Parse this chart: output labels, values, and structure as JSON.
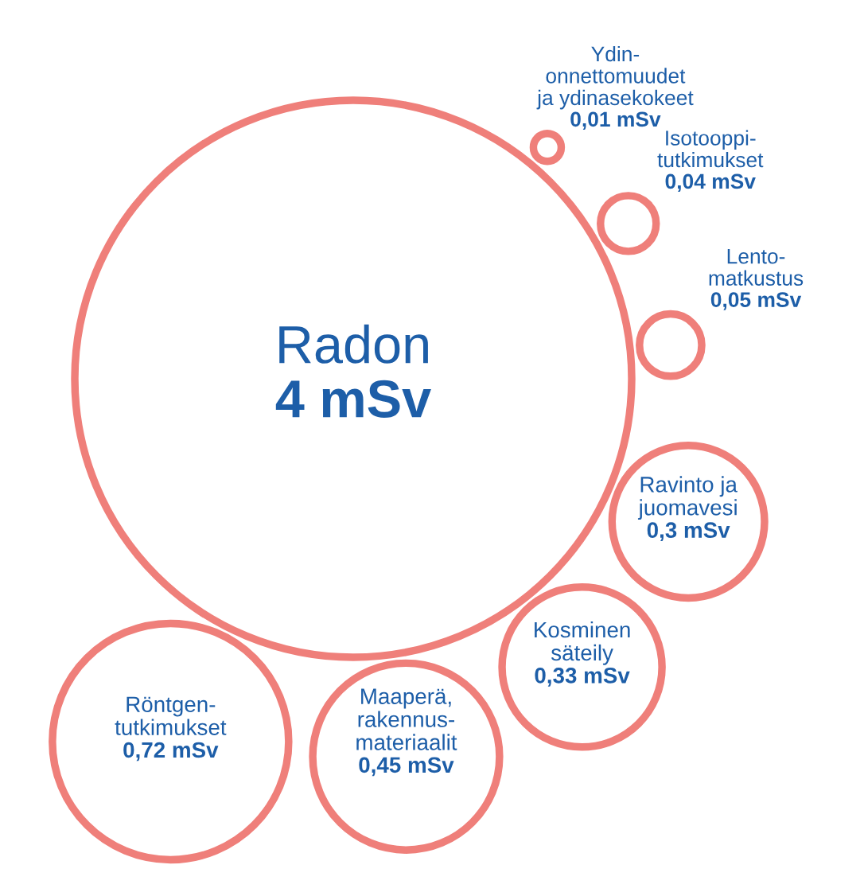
{
  "chart_data": {
    "type": "other",
    "color": "#ef7f7a",
    "categories": [
      "Radon",
      "Ydin-\nonnettomuudet\nja ydinasekokeet",
      "Isotooppi-\ntutkimukset",
      "Lento-\nmatkustus",
      "Ravinto ja\njuomavesi",
      "Kosminen\nsäteily",
      "Maaperä,\nrakennus-\nmateriaalit",
      "Röntgen-\ntutkimukset"
    ],
    "values": [
      4,
      0.01,
      0.04,
      0.05,
      0.3,
      0.33,
      0.45,
      0.72
    ],
    "value_labels": [
      "4 mSv",
      "0,01 mSv",
      "0,04 mSv",
      "0,05 mSv",
      "0,3 mSv",
      "0,33 mSv",
      "0,45 mSv",
      "0,72 mSv"
    ]
  }
}
